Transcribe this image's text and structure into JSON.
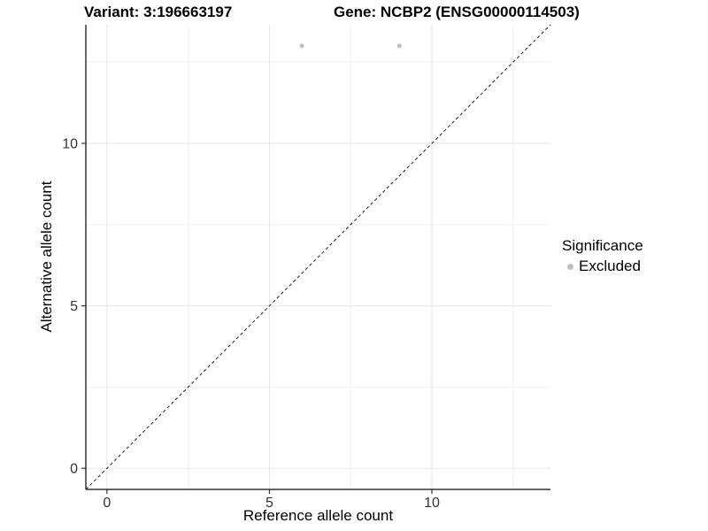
{
  "chart_data": {
    "type": "scatter",
    "title_left": "Variant: 3:196663197",
    "title_right": "Gene: NCBP2 (ENSG00000114503)",
    "xlabel": "Reference allele count",
    "ylabel": "Alternative allele count",
    "xlim": [
      -0.65,
      13.65
    ],
    "ylim": [
      -0.65,
      13.65
    ],
    "xticks": [
      0,
      5,
      10
    ],
    "yticks": [
      0,
      5,
      10
    ],
    "xtick_labels": [
      "0",
      "5",
      "10"
    ],
    "ytick_labels": [
      "0",
      "5",
      "10"
    ],
    "minor_gridlines_x": [
      2.5,
      7.5,
      12.5
    ],
    "minor_gridlines_y": [
      2.5,
      7.5,
      12.5
    ],
    "grid": {
      "on": true,
      "major_color": "#e6e6e6",
      "minor_color": "#f0f0f0",
      "background": "#ffffff"
    },
    "axis_color": "#333333",
    "tick_color": "#333333",
    "series": [
      {
        "name": "Excluded",
        "color": "#bebebe",
        "marker": "circle",
        "points": [
          {
            "x": 6,
            "y": 13
          },
          {
            "x": 9,
            "y": 13
          }
        ]
      }
    ],
    "reference_line": {
      "type": "identity",
      "slope": 1,
      "intercept": 0,
      "style": "dashed",
      "color": "#1a1a1a"
    },
    "legend": {
      "title": "Significance",
      "position": "right",
      "items": [
        {
          "label": "Excluded",
          "color": "#bebebe"
        }
      ]
    }
  }
}
